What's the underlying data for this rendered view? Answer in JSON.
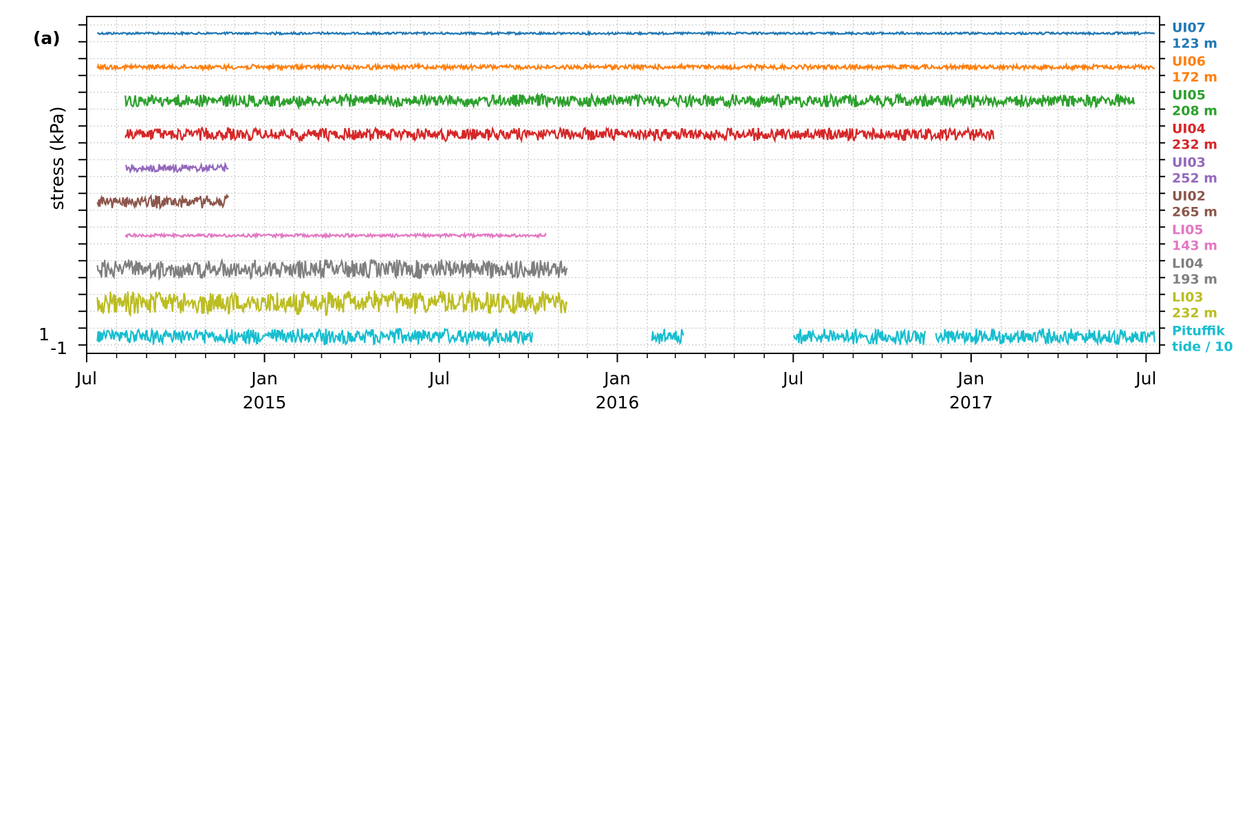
{
  "chart_data": {
    "type": "line",
    "panel_label": "(a)",
    "ylabel": "stress (kPa)",
    "y_tick_labels": [
      "1",
      "-1"
    ],
    "x_ticks": [
      {
        "date": "2014-07-01",
        "label": "Jul",
        "year": ""
      },
      {
        "date": "2015-01-01",
        "label": "Jan",
        "year": "2015"
      },
      {
        "date": "2015-07-01",
        "label": "Jul",
        "year": ""
      },
      {
        "date": "2016-01-01",
        "label": "Jan",
        "year": "2016"
      },
      {
        "date": "2016-07-01",
        "label": "Jul",
        "year": ""
      },
      {
        "date": "2017-01-01",
        "label": "Jan",
        "year": "2017"
      },
      {
        "date": "2017-07-01",
        "label": "Jul",
        "year": ""
      }
    ],
    "xlim": [
      "2014-07-01",
      "2017-07-15"
    ],
    "grid": true,
    "legend": "right-side labels",
    "series": [
      {
        "name": "UI07",
        "depth": "123 m",
        "color": "#1f77b4",
        "start": "2014-07-12",
        "end": "2017-07-10",
        "amplitude": 0.15,
        "baseline_kpa": 0.0
      },
      {
        "name": "UI06",
        "depth": "172 m",
        "color": "#ff7f0e",
        "start": "2014-07-12",
        "end": "2017-07-10",
        "amplitude": 0.3,
        "baseline_kpa": 0.0
      },
      {
        "name": "UI05",
        "depth": "208 m",
        "color": "#2ca02c",
        "start": "2014-08-10",
        "end": "2017-06-20",
        "amplitude": 0.8,
        "baseline_kpa": 0.0
      },
      {
        "name": "UI04",
        "depth": "232 m",
        "color": "#d62728",
        "start": "2014-08-10",
        "end": "2017-01-25",
        "amplitude": 0.8,
        "baseline_kpa": 0.0
      },
      {
        "name": "UI03",
        "depth": "252 m",
        "color": "#9467bd",
        "start": "2014-08-10",
        "end": "2014-11-25",
        "amplitude": 0.5,
        "baseline_kpa": 0.0
      },
      {
        "name": "UI02",
        "depth": "265 m",
        "color": "#8c564b",
        "start": "2014-07-12",
        "end": "2014-11-25",
        "amplitude": 0.8,
        "baseline_kpa": 0.0
      },
      {
        "name": "LI05",
        "depth": "143 m",
        "color": "#e377c2",
        "start": "2014-08-10",
        "end": "2015-10-20",
        "amplitude": 0.2,
        "baseline_kpa": 0.0
      },
      {
        "name": "LI04",
        "depth": "193 m",
        "color": "#7f7f7f",
        "start": "2014-07-12",
        "end": "2015-11-10",
        "amplitude": 1.2,
        "baseline_kpa": 0.0
      },
      {
        "name": "LI03",
        "depth": "232 m",
        "color": "#bcbd22",
        "start": "2014-07-12",
        "end": "2015-11-10",
        "amplitude": 1.5,
        "baseline_kpa": 0.0
      },
      {
        "name": "Pituffik",
        "depth": "tide / 10",
        "color": "#17becf",
        "start": "2014-07-12",
        "end": "2017-07-10",
        "amplitude": 1.0,
        "baseline_kpa": 0.0,
        "gaps": [
          [
            "2015-10-05",
            "2016-02-05"
          ],
          [
            "2016-03-10",
            "2016-07-01"
          ],
          [
            "2016-11-15",
            "2016-11-25"
          ]
        ]
      }
    ]
  }
}
